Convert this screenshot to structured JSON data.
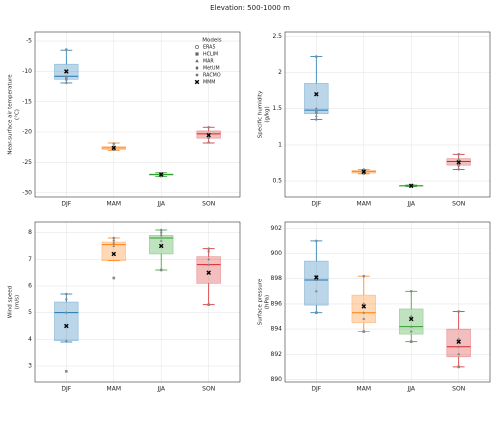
{
  "title": "Elevation: 500-1000 m",
  "chart_data": [
    {
      "type": "box",
      "categories": [
        "DJF",
        "MAM",
        "JJA",
        "SON"
      ],
      "ylabel": [
        "Near-surface air temperature",
        "(°C)"
      ],
      "ylim": [
        -30.7,
        -3.5
      ],
      "yticks": [
        -30,
        -25,
        -20,
        -15,
        -10,
        -5
      ],
      "grid": true,
      "box": {
        "colors": [
          "#1f77b4",
          "#ff7f0e",
          "#2ca02c",
          "#d62728"
        ],
        "whislo": [
          -11.9,
          -23.0,
          -27.3,
          -21.8
        ],
        "q1": [
          -11.3,
          -22.9,
          -27.1,
          -21.0
        ],
        "median": [
          -10.8,
          -22.6,
          -27.0,
          -20.3
        ],
        "q3": [
          -8.8,
          -22.4,
          -26.9,
          -19.8
        ],
        "whishi": [
          -6.5,
          -21.8,
          -26.7,
          -19.2
        ]
      },
      "legend": {
        "title": "Models",
        "loc": "upper right"
      },
      "series": [
        {
          "name": "ERA5",
          "marker": "circle",
          "color": "#888888",
          "values": [
            -6.4,
            -21.9,
            -26.8,
            -19.2
          ]
        },
        {
          "name": "HCLIM",
          "marker": "square",
          "color": "#888888",
          "values": [
            -11.3,
            -22.9,
            -27.2,
            -20.9
          ]
        },
        {
          "name": "MAR",
          "marker": "triangle",
          "color": "#888888",
          "values": [
            -10.8,
            -22.6,
            -27.0,
            -20.4
          ]
        },
        {
          "name": "MetUM",
          "marker": "diamond",
          "color": "#888888",
          "values": [
            -11.0,
            -22.4,
            -27.1,
            -20.3
          ]
        },
        {
          "name": "RACMO",
          "marker": "star",
          "color": "#888888",
          "values": [
            -11.9,
            -22.9,
            -27.3,
            -21.7
          ]
        },
        {
          "name": "MMM",
          "marker": "x",
          "color": "#000000",
          "values": [
            -10.0,
            -22.6,
            -27.0,
            -20.5
          ]
        }
      ]
    },
    {
      "type": "box",
      "categories": [
        "DJF",
        "MAM",
        "JJA",
        "SON"
      ],
      "ylabel": [
        "Specific humidity",
        "(g/kg)"
      ],
      "ylim": [
        0.28,
        2.56
      ],
      "yticks": [
        0.5,
        1.0,
        1.5,
        2.0,
        2.5
      ],
      "grid": true,
      "box": {
        "colors": [
          "#1f77b4",
          "#ff7f0e",
          "#2ca02c",
          "#d62728"
        ],
        "whislo": [
          1.35,
          0.6,
          0.425,
          0.66
        ],
        "q1": [
          1.43,
          0.61,
          0.43,
          0.72
        ],
        "median": [
          1.48,
          0.63,
          0.435,
          0.77
        ],
        "q3": [
          1.85,
          0.65,
          0.44,
          0.81
        ],
        "whishi": [
          2.22,
          0.66,
          0.445,
          0.87
        ]
      },
      "series": [
        {
          "name": "ERA5",
          "marker": "circle",
          "color": "#888888",
          "values": [
            2.22,
            0.66,
            0.445,
            0.87
          ]
        },
        {
          "name": "HCLIM",
          "marker": "square",
          "color": "#888888",
          "values": [
            1.45,
            0.61,
            0.43,
            0.72
          ]
        },
        {
          "name": "MAR",
          "marker": "triangle",
          "color": "#888888",
          "values": [
            1.4,
            0.62,
            0.435,
            0.76
          ]
        },
        {
          "name": "MetUM",
          "marker": "diamond",
          "color": "#888888",
          "values": [
            1.5,
            0.65,
            0.44,
            0.8
          ]
        },
        {
          "name": "RACMO",
          "marker": "star",
          "color": "#888888",
          "values": [
            1.35,
            0.6,
            0.425,
            0.66
          ]
        },
        {
          "name": "MMM",
          "marker": "x",
          "color": "#000000",
          "values": [
            1.7,
            0.63,
            0.435,
            0.76
          ]
        }
      ]
    },
    {
      "type": "box",
      "categories": [
        "DJF",
        "MAM",
        "JJA",
        "SON"
      ],
      "ylabel": [
        "Wind speed",
        "(m/s)"
      ],
      "ylim": [
        2.4,
        8.4
      ],
      "yticks": [
        3,
        4,
        5,
        6,
        7,
        8
      ],
      "grid": true,
      "box": {
        "colors": [
          "#1f77b4",
          "#ff7f0e",
          "#2ca02c",
          "#d62728"
        ],
        "whislo": [
          3.9,
          6.95,
          6.6,
          5.3
        ],
        "q1": [
          3.95,
          6.95,
          7.2,
          6.1
        ],
        "median": [
          5.0,
          7.55,
          7.8,
          6.8
        ],
        "q3": [
          5.4,
          7.65,
          7.9,
          7.1
        ],
        "whishi": [
          5.7,
          7.8,
          8.1,
          7.4
        ]
      },
      "series": [
        {
          "name": "ERA5",
          "marker": "circle",
          "color": "#888888",
          "values": [
            5.7,
            7.8,
            8.1,
            7.4
          ]
        },
        {
          "name": "HCLIM",
          "marker": "square",
          "color": "#888888",
          "values": [
            2.8,
            6.3,
            6.6,
            5.3
          ]
        },
        {
          "name": "MAR",
          "marker": "triangle",
          "color": "#888888",
          "values": [
            3.95,
            7.5,
            7.7,
            6.8
          ]
        },
        {
          "name": "MetUM",
          "marker": "diamond",
          "color": "#888888",
          "values": [
            5.0,
            7.6,
            7.9,
            7.0
          ]
        },
        {
          "name": "RACMO",
          "marker": "star",
          "color": "#888888",
          "values": [
            5.5,
            7.7,
            8.0,
            7.3
          ]
        },
        {
          "name": "MMM",
          "marker": "x",
          "color": "#000000",
          "values": [
            4.5,
            7.2,
            7.5,
            6.5
          ]
        }
      ]
    },
    {
      "type": "box",
      "categories": [
        "DJF",
        "MAM",
        "JJA",
        "SON"
      ],
      "ylabel": [
        "Surface pressure",
        "(hPa)"
      ],
      "ylim": [
        889.8,
        902.5
      ],
      "yticks": [
        890,
        892,
        894,
        896,
        898,
        900,
        902
      ],
      "grid": true,
      "box": {
        "colors": [
          "#1f77b4",
          "#ff7f0e",
          "#2ca02c",
          "#d62728"
        ],
        "whislo": [
          895.3,
          893.8,
          893.0,
          891.0
        ],
        "q1": [
          895.9,
          894.5,
          893.6,
          891.8
        ],
        "median": [
          897.9,
          895.3,
          894.2,
          892.6
        ],
        "q3": [
          899.4,
          896.7,
          895.6,
          894.0
        ],
        "whishi": [
          901.0,
          898.2,
          897.0,
          895.4
        ]
      },
      "series": [
        {
          "name": "ERA5",
          "marker": "circle",
          "color": "#888888",
          "values": [
            901.0,
            898.2,
            897.0,
            895.4
          ]
        },
        {
          "name": "HCLIM",
          "marker": "square",
          "color": "#888888",
          "values": [
            895.3,
            893.8,
            893.0,
            891.0
          ]
        },
        {
          "name": "MAR",
          "marker": "triangle",
          "color": "#888888",
          "values": [
            897.9,
            895.3,
            894.2,
            892.6
          ]
        },
        {
          "name": "MetUM",
          "marker": "diamond",
          "color": "#888888",
          "values": [
            898.2,
            896.0,
            895.0,
            893.2
          ]
        },
        {
          "name": "RACMO",
          "marker": "star",
          "color": "#888888",
          "values": [
            897.0,
            894.8,
            893.8,
            892.0
          ]
        },
        {
          "name": "MMM",
          "marker": "x",
          "color": "#000000",
          "values": [
            898.1,
            895.8,
            894.8,
            893.0
          ]
        }
      ]
    }
  ]
}
